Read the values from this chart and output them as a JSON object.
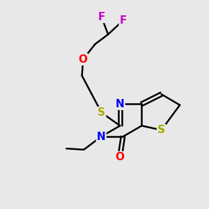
{
  "background_color": "#e8e8e8",
  "bond_color": "#000000",
  "bond_width": 1.8,
  "atom_colors": {
    "F": "#cc00cc",
    "O": "#ff0000",
    "S_thioether": "#aaaa00",
    "N": "#0000ff",
    "S_thiophene": "#aaaa00",
    "O_carbonyl": "#ff0000"
  },
  "font_size_atoms": 11,
  "figsize": [
    3.0,
    3.0
  ],
  "dpi": 100,
  "xlim": [
    0,
    10
  ],
  "ylim": [
    0,
    10
  ]
}
